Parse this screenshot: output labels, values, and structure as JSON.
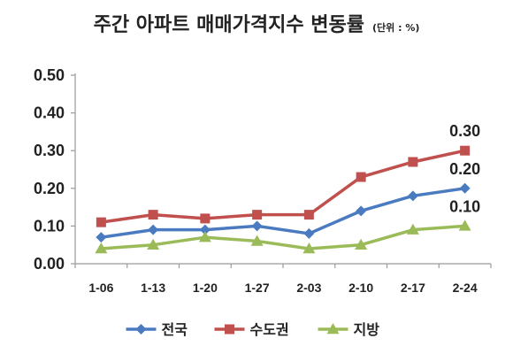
{
  "chart_data": {
    "type": "line",
    "title": "주간 아파트 매매가격지수 변동률",
    "unit_label": "(단위 : %)",
    "xlabel": "",
    "ylabel": "",
    "categories": [
      "1-06",
      "1-13",
      "1-20",
      "1-27",
      "2-03",
      "2-10",
      "2-17",
      "2-24"
    ],
    "y_ticks": [
      "0.00",
      "0.10",
      "0.20",
      "0.30",
      "0.40",
      "0.50"
    ],
    "ylim": [
      0,
      0.5
    ],
    "grid": false,
    "legend_position": "bottom",
    "series": [
      {
        "name": "전국",
        "color": "#4a7bc0",
        "marker": "diamond",
        "values": [
          0.07,
          0.09,
          0.09,
          0.1,
          0.08,
          0.14,
          0.18,
          0.2
        ],
        "end_label": "0.20"
      },
      {
        "name": "수도권",
        "color": "#c0504d",
        "marker": "square",
        "values": [
          0.11,
          0.13,
          0.12,
          0.13,
          0.13,
          0.23,
          0.27,
          0.3
        ],
        "end_label": "0.30"
      },
      {
        "name": "지방",
        "color": "#9bbb59",
        "marker": "triangle",
        "values": [
          0.04,
          0.05,
          0.07,
          0.06,
          0.04,
          0.05,
          0.09,
          0.1
        ],
        "end_label": "0.10"
      }
    ]
  }
}
